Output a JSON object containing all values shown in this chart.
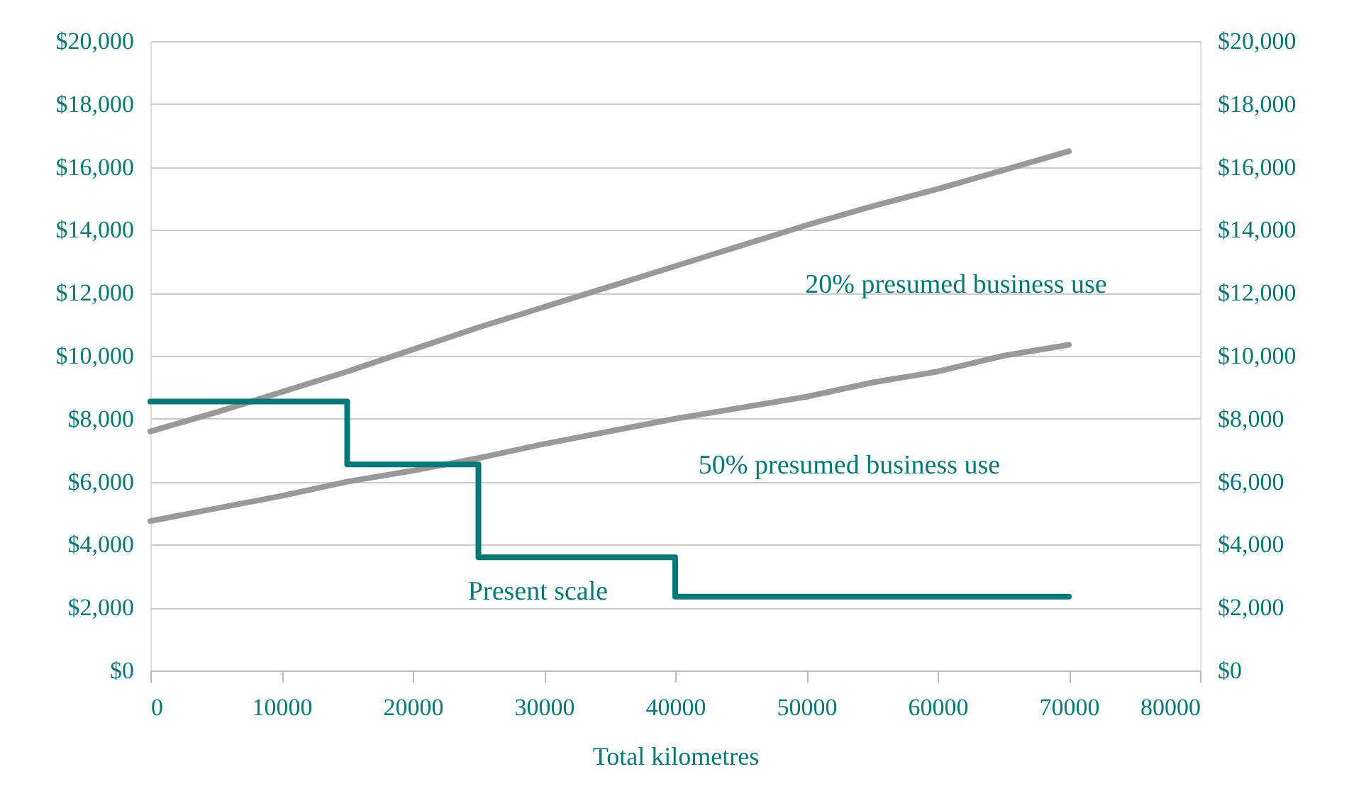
{
  "chart_data": {
    "type": "line",
    "xlabel": "Total kilometres",
    "xlim": [
      0,
      80000
    ],
    "xticks": [
      0,
      10000,
      20000,
      30000,
      40000,
      50000,
      60000,
      70000,
      80000
    ],
    "ylim": [
      0,
      20000
    ],
    "yticks": [
      {
        "value": 0,
        "label": "$0"
      },
      {
        "value": 2000,
        "label": "$2,000"
      },
      {
        "value": 4000,
        "label": "$4,000"
      },
      {
        "value": 6000,
        "label": "$6,000"
      },
      {
        "value": 8000,
        "label": "$8,000"
      },
      {
        "value": 10000,
        "label": "$10,000"
      },
      {
        "value": 12000,
        "label": "$12,000"
      },
      {
        "value": 14000,
        "label": "$14,000"
      },
      {
        "value": 16000,
        "label": "$16,000"
      },
      {
        "value": 18000,
        "label": "$18,000"
      },
      {
        "value": 20000,
        "label": "$20,000"
      }
    ],
    "y2lim": [
      0,
      20000
    ],
    "y2ticks": [
      {
        "value": 0,
        "label": "$0"
      },
      {
        "value": 2000,
        "label": "$2,000"
      },
      {
        "value": 4000,
        "label": "$4,000"
      },
      {
        "value": 6000,
        "label": "$6,000"
      },
      {
        "value": 8000,
        "label": "$8,000"
      },
      {
        "value": 10000,
        "label": "$10,000"
      },
      {
        "value": 12000,
        "label": "$12,000"
      },
      {
        "value": 14000,
        "label": "$14,000"
      },
      {
        "value": 16000,
        "label": "$16,000"
      },
      {
        "value": 18000,
        "label": "$18,000"
      },
      {
        "value": 20000,
        "label": "$20,000"
      }
    ],
    "grid": "y",
    "legend": false,
    "marker": "none",
    "line_style": "solid",
    "series": [
      {
        "name": "20% presumed business use",
        "color": "#999999",
        "x": [
          0,
          5000,
          10000,
          15000,
          20000,
          25000,
          30000,
          35000,
          40000,
          45000,
          50000,
          55000,
          60000,
          65000,
          70000
        ],
        "values": [
          7600,
          8200,
          8850,
          9500,
          10200,
          10900,
          11550,
          12200,
          12850,
          13500,
          14150,
          14750,
          15300,
          15900,
          16500
        ]
      },
      {
        "name": "50% presumed business use",
        "color": "#999999",
        "x": [
          0,
          10000,
          15000,
          20000,
          25000,
          30000,
          40000,
          50000,
          55000,
          60000,
          65000,
          70000
        ],
        "values": [
          4750,
          5550,
          6000,
          6350,
          6750,
          7200,
          8000,
          8700,
          9150,
          9500,
          10000,
          10350
        ]
      },
      {
        "name": "Present scale",
        "type": "step",
        "color": "#007a78",
        "x": [
          0,
          15000,
          25000,
          40000,
          70000
        ],
        "values": [
          8550,
          6550,
          3600,
          2350,
          2350
        ]
      }
    ]
  }
}
